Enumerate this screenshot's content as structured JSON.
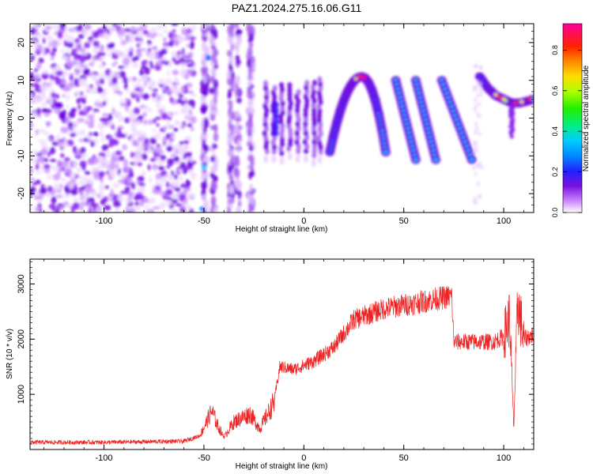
{
  "title": "PAZ1.2024.275.16.06.G11",
  "chart_data": [
    {
      "type": "heatmap",
      "xlabel": "Height of straight line (km)",
      "ylabel": "Frequency (Hz)",
      "xlim": [
        -137,
        115
      ],
      "ylim": [
        -25,
        25
      ],
      "x_ticks": [
        -100,
        -50,
        0,
        50,
        100
      ],
      "y_ticks": [
        -20,
        -10,
        0,
        10,
        20
      ],
      "colorbar": {
        "label": "Normalized spectral amplitude",
        "range": [
          0,
          0.93
        ],
        "ticks": [
          0.0,
          0.2,
          0.4,
          0.6,
          0.8
        ],
        "colors": [
          "#ffffff",
          "#cc88ff",
          "#7711dd",
          "#2222ff",
          "#00ccff",
          "#00ee66",
          "#aaff00",
          "#ffdd00",
          "#ff6600",
          "#ff0000",
          "#ff0099"
        ]
      },
      "features": {
        "noise_region_x": [
          -137,
          -55
        ],
        "arch": {
          "x_start": 13,
          "x_peak": 29,
          "x_end": 41,
          "freq_peak": 11,
          "freq_base": -9
        },
        "diagonal_streaks": [
          {
            "x_start": 46,
            "x_end": 56,
            "f_start": 10,
            "f_end": -11
          },
          {
            "x_start": 56,
            "x_end": 66,
            "f_start": 10,
            "f_end": -11
          },
          {
            "x_start": 69,
            "x_end": 84,
            "f_start": 10,
            "f_end": -11
          }
        ],
        "curve_right": [
          [
            88,
            11
          ],
          [
            92,
            8
          ],
          [
            96,
            6
          ],
          [
            100,
            5
          ],
          [
            104,
            4
          ],
          [
            108,
            4
          ],
          [
            112,
            4.5
          ],
          [
            115,
            5
          ]
        ]
      }
    },
    {
      "type": "line",
      "xlabel": "Height of straight line (km)",
      "ylabel": "SNR (10 * v/v)",
      "xlim": [
        -137,
        115
      ],
      "ylim": [
        0,
        3450
      ],
      "x_ticks": [
        -100,
        -50,
        0,
        50,
        100
      ],
      "y_ticks": [
        1000,
        2000,
        3000
      ],
      "color": "#ee2222",
      "series_envelope": [
        {
          "x": -137,
          "y": 130
        },
        {
          "x": -100,
          "y": 130
        },
        {
          "x": -60,
          "y": 150
        },
        {
          "x": -52,
          "y": 250
        },
        {
          "x": -46,
          "y": 700
        },
        {
          "x": -43,
          "y": 420
        },
        {
          "x": -40,
          "y": 230
        },
        {
          "x": -35,
          "y": 500
        },
        {
          "x": -27,
          "y": 650
        },
        {
          "x": -22,
          "y": 380
        },
        {
          "x": -15,
          "y": 850
        },
        {
          "x": -12,
          "y": 1500
        },
        {
          "x": -5,
          "y": 1450
        },
        {
          "x": 5,
          "y": 1600
        },
        {
          "x": 15,
          "y": 1850
        },
        {
          "x": 25,
          "y": 2350
        },
        {
          "x": 40,
          "y": 2550
        },
        {
          "x": 55,
          "y": 2650
        },
        {
          "x": 74,
          "y": 2780
        },
        {
          "x": 75,
          "y": 1950
        },
        {
          "x": 95,
          "y": 1950
        },
        {
          "x": 100,
          "y": 2050
        },
        {
          "x": 103,
          "y": 2400
        },
        {
          "x": 105,
          "y": 400
        },
        {
          "x": 107,
          "y": 2700
        },
        {
          "x": 110,
          "y": 2000
        },
        {
          "x": 115,
          "y": 2080
        }
      ]
    }
  ]
}
